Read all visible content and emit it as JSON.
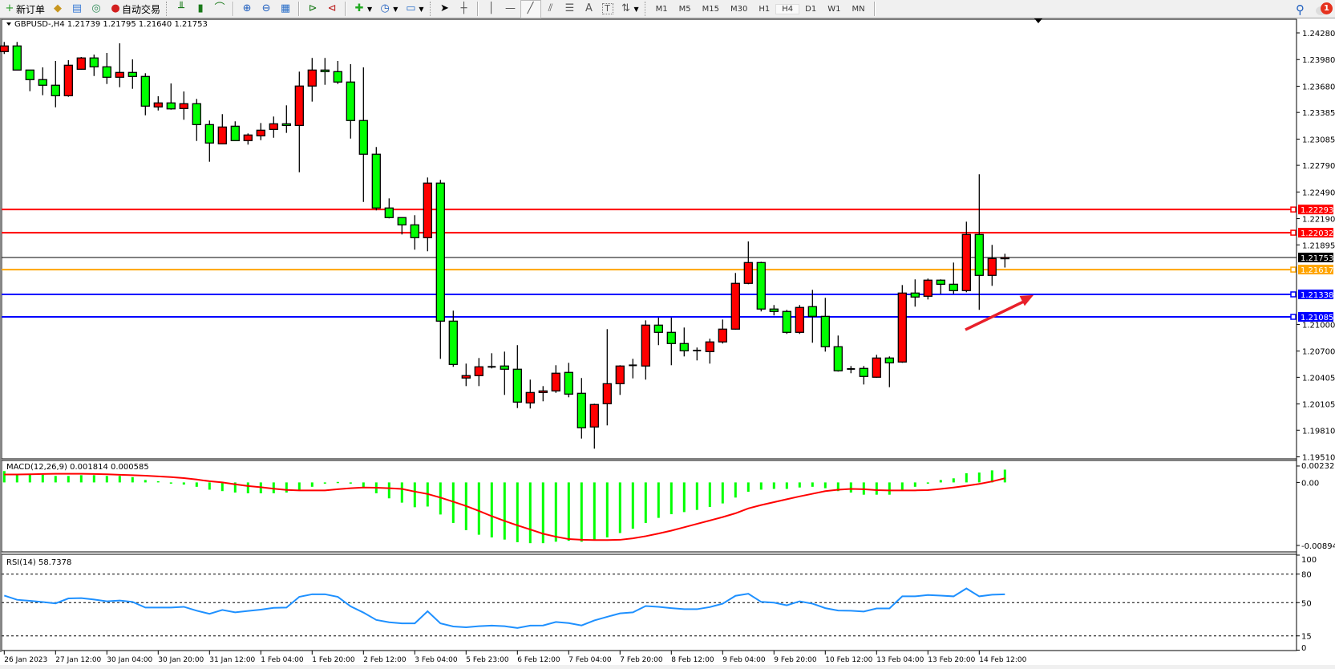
{
  "toolbar": {
    "new_order": "新订单",
    "auto_trading": "自动交易",
    "timeframes": [
      "M1",
      "M5",
      "M15",
      "M30",
      "H1",
      "H4",
      "D1",
      "W1",
      "MN"
    ],
    "active_timeframe": "H4",
    "notification_count": "1",
    "text_tool": "A",
    "label_tool": "T"
  },
  "colors": {
    "up_candle": "#ff0000",
    "down_candle": "#00ff00",
    "macd_histogram": "#00ff00",
    "macd_signal": "#ff0000",
    "rsi_line": "#1e90ff",
    "arrow": "#e8202a"
  },
  "chart_data": [
    {
      "type": "candlestick",
      "title": "GBPUSD-,H4  1.21739 1.21795 1.21640 1.21753",
      "symbol": "GBPUSD-",
      "timeframe": "H4",
      "ylim": [
        1.1951,
        1.244
      ],
      "y_ticks": [
        "1.24280",
        "1.23980",
        "1.23680",
        "1.23385",
        "1.23085",
        "1.22790",
        "1.22490",
        "1.22190",
        "1.21895",
        "1.21000",
        "1.20700",
        "1.20405",
        "1.20105",
        "1.19810",
        "1.19510"
      ],
      "x_ticks": [
        "26 Jan 2023",
        "27 Jan 12:00",
        "30 Jan 04:00",
        "30 Jan 20:00",
        "31 Jan 12:00",
        "1 Feb 04:00",
        "1 Feb 20:00",
        "2 Feb 12:00",
        "3 Feb 04:00",
        "5 Feb 23:00",
        "6 Feb 12:00",
        "7 Feb 04:00",
        "7 Feb 20:00",
        "8 Feb 12:00",
        "9 Feb 04:00",
        "9 Feb 20:00",
        "10 Feb 12:00",
        "13 Feb 04:00",
        "13 Feb 20:00",
        "14 Feb 12:00"
      ],
      "x_tick_every_bars": 4,
      "ohlc": [
        [
          1.2407,
          1.24178,
          1.24043,
          1.24133
        ],
        [
          1.24133,
          1.24178,
          1.2386,
          1.23862
        ],
        [
          1.23862,
          1.23865,
          1.23624,
          1.23754
        ],
        [
          1.23754,
          1.23892,
          1.23579,
          1.23691
        ],
        [
          1.23691,
          1.23964,
          1.23443,
          1.23573
        ],
        [
          1.23573,
          1.23973,
          1.23561,
          1.23916
        ],
        [
          1.23871,
          1.24009,
          1.23865,
          1.23998
        ],
        [
          1.23998,
          1.24036,
          1.23795,
          1.23898
        ],
        [
          1.23898,
          1.24054,
          1.23705,
          1.23781
        ],
        [
          1.23781,
          1.24163,
          1.23669,
          1.23835
        ],
        [
          1.23835,
          1.23982,
          1.23651,
          1.2379
        ],
        [
          1.2379,
          1.23826,
          1.23353,
          1.23456
        ],
        [
          1.23447,
          1.23567,
          1.23407,
          1.23492
        ],
        [
          1.23492,
          1.23711,
          1.23416,
          1.23425
        ],
        [
          1.23429,
          1.23621,
          1.23303,
          1.23483
        ],
        [
          1.23483,
          1.23537,
          1.23064,
          1.23248
        ],
        [
          1.23248,
          1.23294,
          1.2283,
          1.23041
        ],
        [
          1.23032,
          1.23366,
          1.23028,
          1.23221
        ],
        [
          1.2323,
          1.23285,
          1.23065,
          1.23068
        ],
        [
          1.23068,
          1.23149,
          1.23023,
          1.23131
        ],
        [
          1.23122,
          1.23266,
          1.23073,
          1.23185
        ],
        [
          1.23194,
          1.23339,
          1.231,
          1.23257
        ],
        [
          1.23257,
          1.23465,
          1.23155,
          1.23239
        ],
        [
          1.23239,
          1.23844,
          1.22712,
          1.23682
        ],
        [
          1.23682,
          1.23998,
          1.23507,
          1.23862
        ],
        [
          1.23862,
          1.23998,
          1.23696,
          1.23844
        ],
        [
          1.23844,
          1.23964,
          1.23705,
          1.23727
        ],
        [
          1.23727,
          1.23928,
          1.23091,
          1.23294
        ],
        [
          1.23294,
          1.23892,
          1.22378,
          1.22915
        ],
        [
          1.22915,
          1.22996,
          1.22283,
          1.2231
        ],
        [
          1.2231,
          1.22418,
          1.22193,
          1.22202
        ],
        [
          1.22202,
          1.22205,
          1.22012,
          1.2212
        ],
        [
          1.2212,
          1.22229,
          1.21841,
          1.21976
        ],
        [
          1.21976,
          1.22653,
          1.21823,
          1.2259
        ],
        [
          1.2259,
          1.22626,
          1.20613,
          1.21037
        ],
        [
          1.21037,
          1.21155,
          1.20523,
          1.2055
        ],
        [
          1.20397,
          1.20559,
          1.20306,
          1.20424
        ],
        [
          1.20424,
          1.20622,
          1.20306,
          1.20523
        ],
        [
          1.20523,
          1.20676,
          1.20505,
          1.2052
        ],
        [
          1.20532,
          1.20694,
          1.20207,
          1.20496
        ],
        [
          1.20496,
          1.20767,
          1.20059,
          1.20126
        ],
        [
          1.20117,
          1.20379,
          1.20054,
          1.20234
        ],
        [
          1.20234,
          1.20306,
          1.20135,
          1.20252
        ],
        [
          1.20252,
          1.20541,
          1.2023,
          1.20451
        ],
        [
          1.2046,
          1.20568,
          1.2018,
          1.20216
        ],
        [
          1.20225,
          1.20397,
          1.19716,
          1.19837
        ],
        [
          1.19846,
          1.20108,
          1.19602,
          1.20099
        ],
        [
          1.20108,
          1.20947,
          1.19864,
          1.20333
        ],
        [
          1.20333,
          1.20541,
          1.20207,
          1.20532
        ],
        [
          1.20537,
          1.20613,
          1.20393,
          1.2054
        ],
        [
          1.20532,
          1.21046,
          1.20379,
          1.20992
        ],
        [
          1.20992,
          1.21076,
          1.20767,
          1.20911
        ],
        [
          1.20911,
          1.21076,
          1.20541,
          1.20785
        ],
        [
          1.20785,
          1.20965,
          1.2064,
          1.20703
        ],
        [
          1.20703,
          1.2074,
          1.20595,
          1.20706
        ],
        [
          1.20694,
          1.20839,
          1.20559,
          1.20803
        ],
        [
          1.20803,
          1.21055,
          1.20785,
          1.20947
        ],
        [
          1.20947,
          1.21579,
          1.2094,
          1.21462
        ],
        [
          1.21462,
          1.21934,
          1.21452,
          1.21696
        ],
        [
          1.21696,
          1.21705,
          1.21146,
          1.21173
        ],
        [
          1.21173,
          1.21218,
          1.21101,
          1.21146
        ],
        [
          1.21146,
          1.21164,
          1.20893,
          1.20911
        ],
        [
          1.20911,
          1.21218,
          1.20893,
          1.21191
        ],
        [
          1.212,
          1.21389,
          1.20794,
          1.21091
        ],
        [
          1.21091,
          1.21299,
          1.20694,
          1.20749
        ],
        [
          1.20749,
          1.20875,
          1.20469,
          1.20478
        ],
        [
          1.20499,
          1.20532,
          1.20451,
          1.20496
        ],
        [
          1.20505,
          1.20532,
          1.20324,
          1.20415
        ],
        [
          1.20406,
          1.20658,
          1.204,
          1.20622
        ],
        [
          1.20622,
          1.2064,
          1.20294,
          1.20568
        ],
        [
          1.20577,
          1.21443,
          1.20568,
          1.21353
        ],
        [
          1.21353,
          1.21507,
          1.212,
          1.21308
        ],
        [
          1.21317,
          1.21516,
          1.21281,
          1.21498
        ],
        [
          1.21498,
          1.21507,
          1.21344,
          1.21452
        ],
        [
          1.21452,
          1.21696,
          1.21344,
          1.2138
        ],
        [
          1.2138,
          1.22156,
          1.21362,
          1.22012
        ],
        [
          1.22012,
          1.22689,
          1.21164,
          1.21552
        ],
        [
          1.21552,
          1.21895,
          1.21434,
          1.21741
        ],
        [
          1.21739,
          1.21795,
          1.2164,
          1.21753
        ]
      ],
      "bid": {
        "value": "1.21753",
        "color": "#000000"
      },
      "horizontal_lines": [
        {
          "value": "1.22293",
          "color": "#ff0000"
        },
        {
          "value": "1.22032",
          "color": "#ff0000"
        },
        {
          "value": "1.21617",
          "color": "#ffa500"
        },
        {
          "value": "1.21338",
          "color": "#0000ff"
        },
        {
          "value": "1.21085",
          "color": "#0000ff"
        }
      ],
      "annotations": [
        {
          "type": "arrow",
          "direction": "up-right",
          "from_price": 1.2094,
          "to_price": 1.2133
        }
      ]
    },
    {
      "type": "bar+line",
      "title": "MACD(12,26,9) 0.001814 0.000585",
      "ylim": [
        -0.00894,
        0.002326
      ],
      "y_ticks": [
        "0.002326",
        "0.00",
        "-0.00894"
      ],
      "histogram": [
        0.00161,
        0.00109,
        0.00109,
        0.00109,
        0.00092,
        0.00092,
        0.00103,
        0.00103,
        0.00092,
        0.00092,
        0.00075,
        0.00034,
        0.00017,
        -0.00014,
        -0.00031,
        -0.00062,
        -0.00103,
        -0.00123,
        -0.00144,
        -0.00154,
        -0.00154,
        -0.00154,
        -0.00144,
        -0.00109,
        -0.00062,
        -0.00017,
        7e-05,
        -0.00014,
        -0.00068,
        -0.00154,
        -0.00226,
        -0.00287,
        -0.00352,
        -0.00342,
        -0.00455,
        -0.00575,
        -0.00677,
        -0.00742,
        -0.0078,
        -0.00811,
        -0.00848,
        -0.00862,
        -0.00862,
        -0.00841,
        -0.00828,
        -0.00841,
        -0.00814,
        -0.0078,
        -0.00718,
        -0.00657,
        -0.00575,
        -0.00503,
        -0.00451,
        -0.00421,
        -0.0039,
        -0.00349,
        -0.00298,
        -0.00215,
        -0.00133,
        -0.00103,
        -0.00092,
        -0.00092,
        -0.00072,
        -0.00062,
        -0.00082,
        -0.00123,
        -0.00144,
        -0.00174,
        -0.00174,
        -0.00174,
        -0.00113,
        -0.00062,
        -0.0001,
        0.00034,
        0.00058,
        0.0013,
        0.0014,
        0.00171,
        0.001814
      ],
      "signal": [
        0.00113,
        0.00113,
        0.00116,
        0.0012,
        0.00123,
        0.00123,
        0.00123,
        0.0012,
        0.00116,
        0.00109,
        0.00103,
        0.00096,
        0.00086,
        0.00075,
        0.00062,
        0.00041,
        0.00017,
        0.0,
        -0.00027,
        -0.00051,
        -0.00068,
        -0.00089,
        -0.00106,
        -0.00113,
        -0.00113,
        -0.00113,
        -0.00096,
        -0.00082,
        -0.00072,
        -0.00075,
        -0.00082,
        -0.00092,
        -0.0013,
        -0.00164,
        -0.00215,
        -0.00274,
        -0.00335,
        -0.00404,
        -0.00479,
        -0.00547,
        -0.00609,
        -0.00667,
        -0.00728,
        -0.0077,
        -0.00804,
        -0.00814,
        -0.00817,
        -0.00817,
        -0.00814,
        -0.00793,
        -0.00763,
        -0.00725,
        -0.00684,
        -0.00636,
        -0.00588,
        -0.0054,
        -0.00492,
        -0.00438,
        -0.00369,
        -0.00321,
        -0.0028,
        -0.00239,
        -0.00198,
        -0.00161,
        -0.00123,
        -0.00103,
        -0.00092,
        -0.00096,
        -0.00109,
        -0.00113,
        -0.00113,
        -0.00113,
        -0.00109,
        -0.00092,
        -0.00072,
        -0.00048,
        -0.00021,
        0.00014,
        0.000585
      ]
    },
    {
      "type": "line",
      "title": "RSI(14) 58.7378",
      "ylim": [
        0,
        100
      ],
      "y_ticks": [
        "100",
        "80",
        "50",
        "15",
        "0"
      ],
      "levels": [
        80,
        50,
        15
      ],
      "values": [
        57.4,
        53.0,
        51.9,
        50.6,
        49.2,
        54.4,
        54.7,
        53.3,
        51.4,
        52.2,
        50.8,
        44.8,
        44.8,
        44.8,
        45.6,
        41.5,
        38.2,
        42.3,
        39.8,
        41.2,
        42.6,
        44.5,
        44.8,
        56.1,
        58.8,
        58.8,
        56.1,
        46.1,
        39.5,
        31.8,
        29.3,
        28.2,
        28.2,
        40.9,
        28.2,
        24.9,
        24.1,
        25.2,
        25.8,
        25.2,
        23.3,
        25.8,
        26.0,
        29.6,
        28.5,
        26.0,
        31.3,
        35.1,
        38.7,
        39.8,
        46.4,
        45.6,
        44.2,
        43.1,
        43.1,
        45.3,
        48.9,
        57.2,
        59.4,
        50.8,
        50.0,
        47.2,
        51.4,
        48.9,
        44.2,
        41.7,
        41.5,
        40.6,
        43.9,
        43.9,
        56.6,
        56.6,
        58.0,
        57.4,
        56.6,
        64.9,
        56.6,
        58.3,
        58.7378
      ]
    }
  ]
}
